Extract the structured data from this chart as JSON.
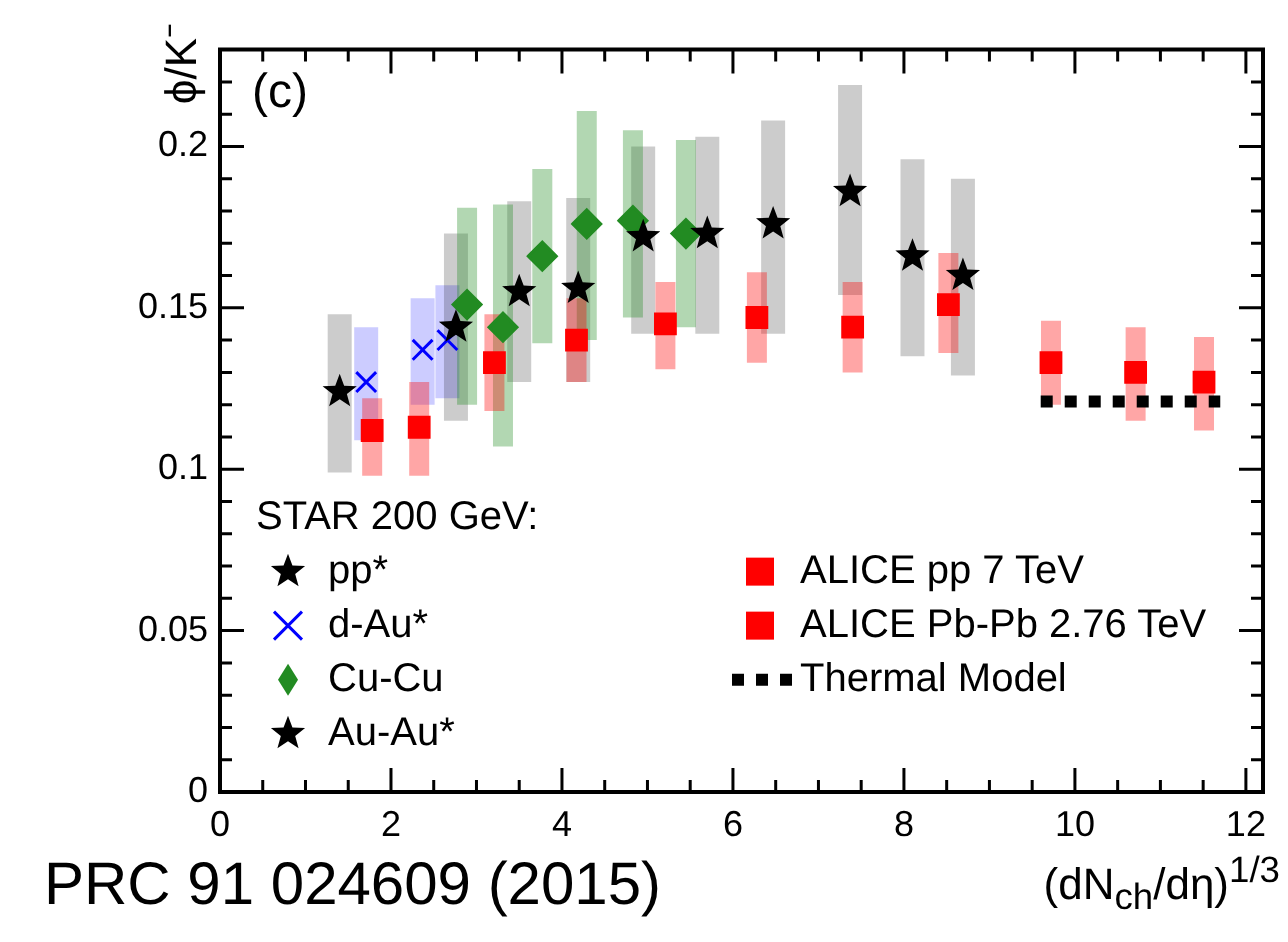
{
  "chart_data": {
    "type": "scatter",
    "xlabel": "(dN$_{ch}$/dη)$^{1/3}$",
    "ylabel": "ϕ/K⁻",
    "legend_title": "STAR 200 GeV:",
    "xlim": [
      0,
      12.2
    ],
    "ylim": [
      0,
      0.23
    ],
    "xticks": [
      0,
      2,
      4,
      6,
      8,
      10,
      12
    ],
    "yticks": [
      0,
      0.05,
      0.1,
      0.15,
      0.2
    ],
    "grid": false,
    "legend": "bottom",
    "annotations": [
      "(c)",
      "PRC 91 024609 (2015)"
    ],
    "series": [
      {
        "name": "pp*",
        "color": "#000000",
        "marker": "star",
        "x": [
          1.4
        ],
        "values": [
          0.124
        ],
        "errors": [
          [
            0.099,
            0.148
          ]
        ]
      },
      {
        "name": "d-Au*",
        "color": "#0000ff",
        "marker": "cross",
        "x": [
          1.71,
          2.37,
          2.66
        ],
        "values": [
          0.127,
          0.137,
          0.14
        ],
        "errors": [
          [
            0.109,
            0.144
          ],
          [
            0.12,
            0.153
          ],
          [
            0.122,
            0.157
          ]
        ]
      },
      {
        "name": "Cu-Cu",
        "color": "#228b22",
        "marker": "diamond",
        "x": [
          2.89,
          3.31,
          3.77,
          4.29,
          4.83,
          5.45
        ],
        "values": [
          0.151,
          0.144,
          0.166,
          0.176,
          0.177,
          0.173
        ],
        "errors": [
          [
            0.12,
            0.181
          ],
          [
            0.107,
            0.182
          ],
          [
            0.139,
            0.193
          ],
          [
            0.14,
            0.211
          ],
          [
            0.147,
            0.205
          ],
          [
            0.144,
            0.202
          ]
        ]
      },
      {
        "name": "Au-Au*",
        "color": "#000000",
        "marker": "star",
        "x": [
          2.76,
          3.5,
          4.19,
          4.95,
          5.7,
          6.47,
          7.37,
          8.1,
          8.69
        ],
        "values": [
          0.144,
          0.155,
          0.156,
          0.172,
          0.173,
          0.176,
          0.186,
          0.166,
          0.16
        ],
        "errors": [
          [
            0.115,
            0.173
          ],
          [
            0.127,
            0.183
          ],
          [
            0.127,
            0.184
          ],
          [
            0.142,
            0.2
          ],
          [
            0.142,
            0.203
          ],
          [
            0.142,
            0.208
          ],
          [
            0.154,
            0.219
          ],
          [
            0.135,
            0.196
          ],
          [
            0.129,
            0.19
          ]
        ]
      },
      {
        "name": "ALICE pp 7 TeV",
        "color": "#ff0000",
        "marker": "square",
        "x": [
          1.78
        ],
        "values": [
          0.112
        ],
        "errors": [
          [
            0.098,
            0.122
          ]
        ]
      },
      {
        "name": "ALICE Pb-Pb 2.76 TeV",
        "color": "#ff0000",
        "marker": "square",
        "x": [
          2.33,
          3.21,
          4.17,
          5.21,
          6.28,
          7.4,
          8.52,
          9.72,
          10.71,
          11.51
        ],
        "values": [
          0.113,
          0.133,
          0.14,
          0.145,
          0.147,
          0.144,
          0.151,
          0.133,
          0.13,
          0.127
        ],
        "errors": [
          [
            0.098,
            0.127
          ],
          [
            0.118,
            0.148
          ],
          [
            0.127,
            0.153
          ],
          [
            0.131,
            0.158
          ],
          [
            0.133,
            0.161
          ],
          [
            0.13,
            0.158
          ],
          [
            0.136,
            0.167
          ],
          [
            0.12,
            0.146
          ],
          [
            0.115,
            0.144
          ],
          [
            0.112,
            0.141
          ]
        ]
      },
      {
        "name": "Thermal Model",
        "type": "line",
        "color": "#000000",
        "marker": "none",
        "line_style": "dotted",
        "x": [
          9.6,
          11.7
        ],
        "values": [
          0.121,
          0.121
        ]
      }
    ]
  }
}
